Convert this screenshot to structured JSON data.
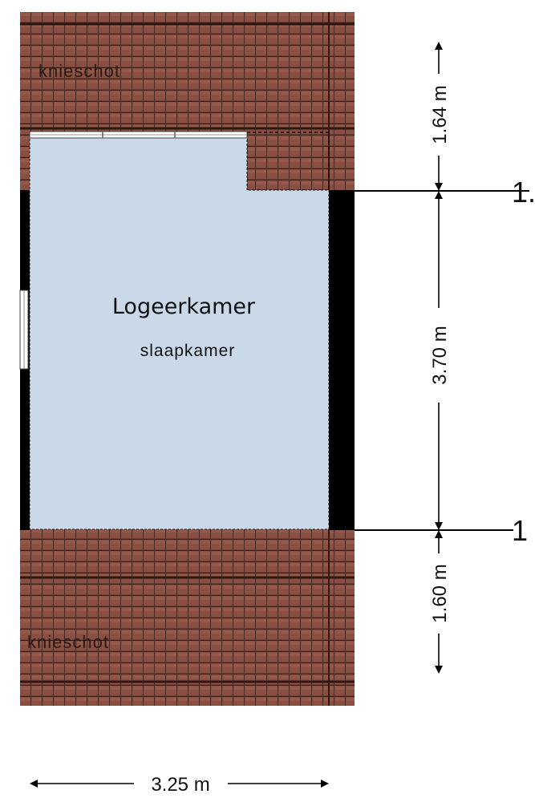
{
  "rooms": {
    "main_title": "Logeerkamer",
    "main_subtitle": "slaapkamer",
    "roof_top_label": "knieschot",
    "roof_bottom_label": "knieschot"
  },
  "dimensions": {
    "top_height": "1.64 m",
    "middle_height": "3.70 m",
    "bottom_height": "1.60 m",
    "width": "3.25 m"
  },
  "edge_labels": {
    "upper": "1.",
    "lower": "1"
  },
  "colors": {
    "roof_tile": "#8a4f43",
    "roof_line": "#3b1f18",
    "room_fill": "#c9d9e9",
    "wall": "#000000"
  }
}
